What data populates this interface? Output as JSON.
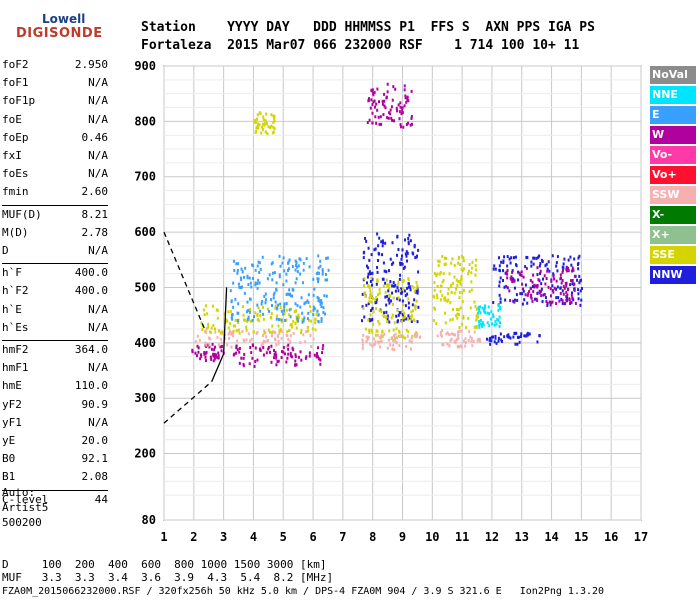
{
  "logo": {
    "line1": "Lowell",
    "line2": "DIGISONDE"
  },
  "header": {
    "row1": "Station    YYYY DAY   DDD HHMMSS P1  FFS S  AXN PPS IGA PS",
    "row2": "Fortaleza  2015 Mar07 066 232000 RSF    1 714 100 10+ 11"
  },
  "params": [
    {
      "name": "foF2",
      "value": "2.950"
    },
    {
      "name": "foF1",
      "value": "N/A"
    },
    {
      "name": "foF1p",
      "value": "N/A"
    },
    {
      "name": "foE",
      "value": "N/A"
    },
    {
      "name": "foEp",
      "value": "0.46"
    },
    {
      "name": "fxI",
      "value": "N/A"
    },
    {
      "name": "foEs",
      "value": "N/A"
    },
    {
      "name": "fmin",
      "value": "2.60"
    },
    {
      "name": "MUF(D)",
      "value": "8.21"
    },
    {
      "name": "M(D)",
      "value": "2.78"
    },
    {
      "name": "D",
      "value": "N/A"
    },
    {
      "name": "h`F",
      "value": "400.0"
    },
    {
      "name": "h`F2",
      "value": "400.0"
    },
    {
      "name": "h`E",
      "value": "N/A"
    },
    {
      "name": "h`Es",
      "value": "N/A"
    },
    {
      "name": "hmF2",
      "value": "364.0"
    },
    {
      "name": "hmF1",
      "value": "N/A"
    },
    {
      "name": "hmE",
      "value": "110.0"
    },
    {
      "name": "yF2",
      "value": "90.9"
    },
    {
      "name": "yF1",
      "value": "N/A"
    },
    {
      "name": "yE",
      "value": "20.0"
    },
    {
      "name": "B0",
      "value": "92.1"
    },
    {
      "name": "B1",
      "value": "2.08"
    },
    {
      "name": "C-level",
      "value": "44"
    }
  ],
  "auto": {
    "line1": "Auto:",
    "line2": "Artist5",
    "line3": "500200"
  },
  "legend": [
    {
      "label": "NoVal",
      "color": "#8c8c8c"
    },
    {
      "label": "NNE",
      "color": "#00e5ff"
    },
    {
      "label": "E",
      "color": "#3aa0ff"
    },
    {
      "label": "W",
      "color": "#b0009e"
    },
    {
      "label": "Vo-",
      "color": "#ff3aa8"
    },
    {
      "label": "Vo+",
      "color": "#ff1030"
    },
    {
      "label": "SSW",
      "color": "#f7b0b0"
    },
    {
      "label": "X-",
      "color": "#007a00"
    },
    {
      "label": "X+",
      "color": "#8fc08f"
    },
    {
      "label": "SSE",
      "color": "#d4d400"
    },
    {
      "label": "NNW",
      "color": "#1e1edc"
    }
  ],
  "bottom": {
    "line1": "D     100  200  400  600  800 1000 1500 3000 [km]",
    "line2": "MUF   3.3  3.3  3.4  3.6  3.9  4.3  5.4  8.2 [MHz]",
    "line3": "FZA0M_2015066232000.RSF / 320fx256h 50 kHz 5.0 km / DPS-4 FZA0M 904 / 3.9 S 321.6 E   Ion2Png 1.3.20"
  },
  "chart_data": {
    "type": "scatter",
    "xlim": [
      1,
      17
    ],
    "ylim": [
      80,
      900
    ],
    "x_ticks": [
      "1",
      "2",
      "3",
      "4",
      "5",
      "6",
      "7",
      "8",
      "9",
      "10",
      "11",
      "12",
      "13",
      "14",
      "15",
      "16",
      "17"
    ],
    "y_ticks": [
      "80",
      "200",
      "300",
      "400",
      "500",
      "600",
      "700",
      "800",
      "900"
    ],
    "y_tick_values": [
      80,
      200,
      300,
      400,
      500,
      600,
      700,
      800,
      900
    ],
    "clusters": [
      {
        "color": "#b0009e",
        "x": [
          1.9,
          3.0
        ],
        "y": [
          370,
          400
        ]
      },
      {
        "color": "#f7b0b0",
        "x": [
          2.0,
          6.0
        ],
        "y": [
          395,
          425
        ]
      },
      {
        "color": "#d4d400",
        "x": [
          2.2,
          6.2
        ],
        "y": [
          420,
          470
        ]
      },
      {
        "color": "#3aa0ff",
        "x": [
          3.2,
          6.5
        ],
        "y": [
          440,
          560
        ]
      },
      {
        "color": "#b0009e",
        "x": [
          3.3,
          6.4
        ],
        "y": [
          360,
          400
        ]
      },
      {
        "color": "#d4d400",
        "x": [
          4.0,
          4.7
        ],
        "y": [
          780,
          820
        ]
      },
      {
        "color": "#1e1edc",
        "x": [
          7.6,
          9.5
        ],
        "y": [
          440,
          600
        ]
      },
      {
        "color": "#d4d400",
        "x": [
          7.6,
          9.5
        ],
        "y": [
          410,
          520
        ]
      },
      {
        "color": "#f7b0b0",
        "x": [
          7.6,
          9.6
        ],
        "y": [
          390,
          420
        ]
      },
      {
        "color": "#b0009e",
        "x": [
          7.8,
          9.3
        ],
        "y": [
          790,
          870
        ]
      },
      {
        "color": "#1e1edc",
        "x": [
          11.8,
          13.6
        ],
        "y": [
          400,
          420
        ]
      },
      {
        "color": "#1e1edc",
        "x": [
          12.0,
          15.0
        ],
        "y": [
          470,
          560
        ]
      },
      {
        "color": "#b0009e",
        "x": [
          12.4,
          14.8
        ],
        "y": [
          470,
          540
        ]
      },
      {
        "color": "#d4d400",
        "x": [
          10.0,
          11.5
        ],
        "y": [
          430,
          560
        ]
      },
      {
        "color": "#f7b0b0",
        "x": [
          10.0,
          11.6
        ],
        "y": [
          395,
          425
        ]
      },
      {
        "color": "#00e5ff",
        "x": [
          11.5,
          12.3
        ],
        "y": [
          430,
          470
        ]
      }
    ],
    "curve_dashed_left": [
      [
        1,
        600
      ],
      [
        2.4,
        420
      ]
    ],
    "curve_dashed_lower": [
      [
        1,
        255
      ],
      [
        2.6,
        330
      ]
    ],
    "curve_solid": [
      [
        2.6,
        330
      ],
      [
        3.0,
        380
      ],
      [
        3.1,
        500
      ]
    ]
  }
}
